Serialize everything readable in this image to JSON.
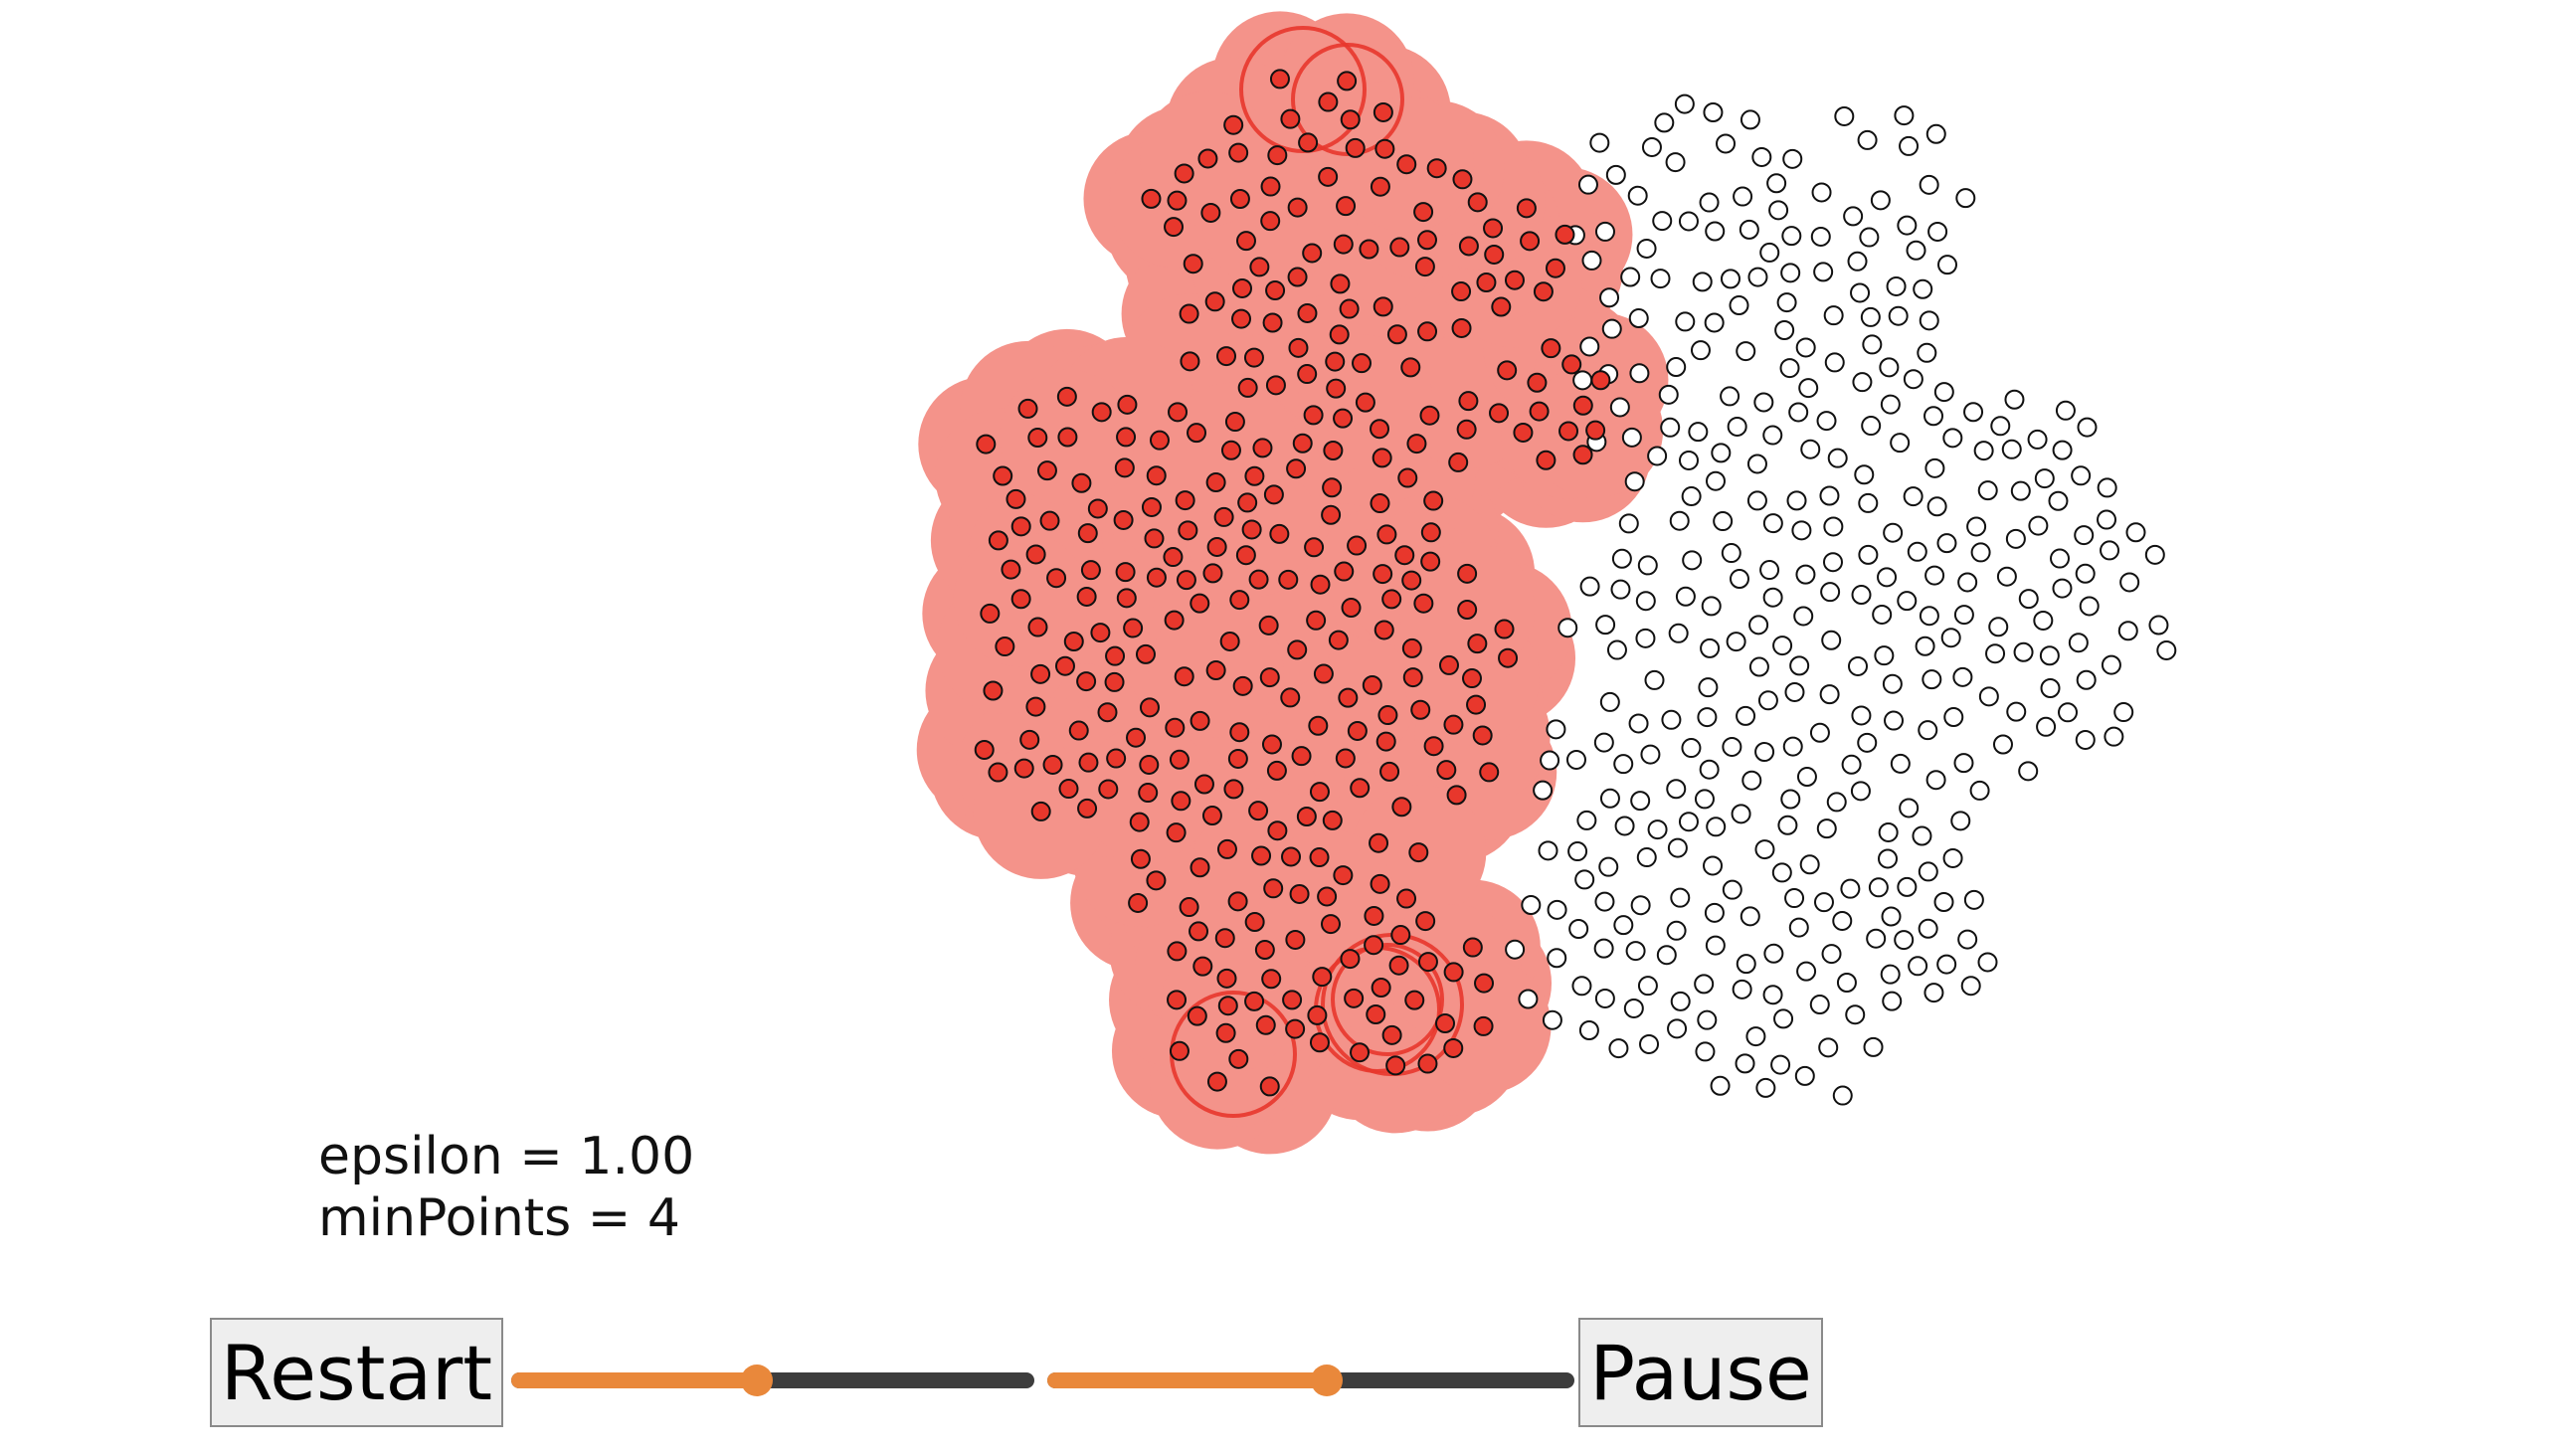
{
  "params": {
    "epsilon_text": "epsilon = 1.00",
    "minpoints_text": "minPoints = 4"
  },
  "controls": {
    "restart_label": "Restart",
    "pause_label": "Pause",
    "speed_slider_value": 0.47,
    "epsilon_slider_value": 0.53
  },
  "colors": {
    "cluster_halo": "#f4938a",
    "cluster_point": "#e8372c",
    "unvisited_point": "#ffffff",
    "point_stroke": "#111111",
    "ring": "#e8372c",
    "slider_fill": "#e9883b",
    "slider_track": "#3d3d3d"
  }
}
